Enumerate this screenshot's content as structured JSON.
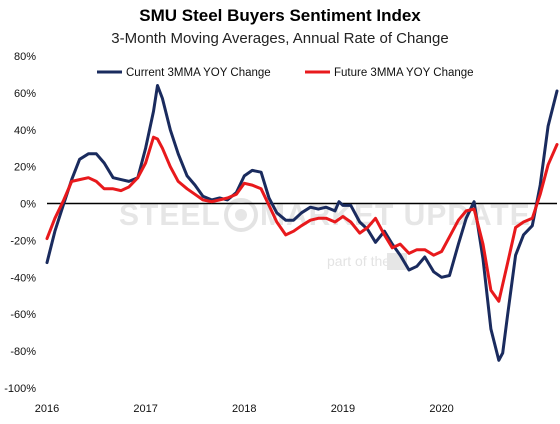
{
  "chart_data": {
    "type": "line",
    "title": "SMU Steel Buyers Sentiment Index",
    "subtitle": "3-Month Moving Averages, Annual Rate of Change",
    "xlabel": "",
    "ylabel": "",
    "ylim": [
      -100,
      80
    ],
    "y_ticks": [
      "80%",
      "60%",
      "40%",
      "20%",
      "0%",
      "-20%",
      "-40%",
      "-60%",
      "-80%",
      "-100%"
    ],
    "x_ticks": [
      "2016",
      "2017",
      "2018",
      "2019",
      "2020"
    ],
    "grid": false,
    "legend_position": "top",
    "zero_line": true,
    "watermark": {
      "brand_left": "STEEL",
      "brand_right": "MARKET UPDATE",
      "tagline": "part of the"
    },
    "series": [
      {
        "name": "Current 3MMA YOY Change",
        "color": "#1a2b5e",
        "points": [
          [
            2016.0,
            -32
          ],
          [
            2016.08,
            -15
          ],
          [
            2016.17,
            0
          ],
          [
            2016.25,
            13
          ],
          [
            2016.33,
            24
          ],
          [
            2016.42,
            27
          ],
          [
            2016.5,
            27
          ],
          [
            2016.58,
            22
          ],
          [
            2016.67,
            14
          ],
          [
            2016.75,
            13
          ],
          [
            2016.83,
            12
          ],
          [
            2016.92,
            14
          ],
          [
            2017.0,
            30
          ],
          [
            2017.08,
            50
          ],
          [
            2017.12,
            64
          ],
          [
            2017.17,
            57
          ],
          [
            2017.25,
            40
          ],
          [
            2017.33,
            27
          ],
          [
            2017.42,
            15
          ],
          [
            2017.5,
            10
          ],
          [
            2017.58,
            4
          ],
          [
            2017.67,
            2
          ],
          [
            2017.75,
            3
          ],
          [
            2017.83,
            2
          ],
          [
            2017.92,
            6
          ],
          [
            2018.0,
            15
          ],
          [
            2018.08,
            18
          ],
          [
            2018.17,
            17
          ],
          [
            2018.25,
            3
          ],
          [
            2018.33,
            -5
          ],
          [
            2018.42,
            -9
          ],
          [
            2018.5,
            -9
          ],
          [
            2018.58,
            -5
          ],
          [
            2018.67,
            -2
          ],
          [
            2018.75,
            -3
          ],
          [
            2018.83,
            -2
          ],
          [
            2018.92,
            -4
          ],
          [
            2018.96,
            1
          ],
          [
            2019.0,
            -1
          ],
          [
            2019.08,
            -1
          ],
          [
            2019.17,
            -10
          ],
          [
            2019.25,
            -14
          ],
          [
            2019.33,
            -21
          ],
          [
            2019.42,
            -15
          ],
          [
            2019.5,
            -22
          ],
          [
            2019.58,
            -28
          ],
          [
            2019.67,
            -36
          ],
          [
            2019.75,
            -34
          ],
          [
            2019.83,
            -29
          ],
          [
            2019.92,
            -37
          ],
          [
            2020.0,
            -40
          ],
          [
            2020.08,
            -39
          ],
          [
            2020.17,
            -22
          ],
          [
            2020.25,
            -8
          ],
          [
            2020.33,
            1
          ],
          [
            2020.42,
            -30
          ],
          [
            2020.5,
            -68
          ],
          [
            2020.58,
            -85
          ],
          [
            2020.62,
            -81
          ],
          [
            2020.67,
            -60
          ],
          [
            2020.75,
            -28
          ],
          [
            2020.83,
            -17
          ],
          [
            2020.92,
            -12
          ],
          [
            2021.0,
            10
          ],
          [
            2021.08,
            42
          ],
          [
            2021.17,
            61
          ]
        ]
      },
      {
        "name": "Future 3MMA YOY Change",
        "color": "#e8191c",
        "points": [
          [
            2016.0,
            -19
          ],
          [
            2016.08,
            -8
          ],
          [
            2016.17,
            2
          ],
          [
            2016.25,
            12
          ],
          [
            2016.33,
            13
          ],
          [
            2016.42,
            14
          ],
          [
            2016.5,
            12
          ],
          [
            2016.58,
            8
          ],
          [
            2016.67,
            8
          ],
          [
            2016.75,
            7
          ],
          [
            2016.83,
            9
          ],
          [
            2016.92,
            14
          ],
          [
            2017.0,
            22
          ],
          [
            2017.08,
            36
          ],
          [
            2017.12,
            35
          ],
          [
            2017.17,
            30
          ],
          [
            2017.25,
            20
          ],
          [
            2017.33,
            12
          ],
          [
            2017.42,
            8
          ],
          [
            2017.5,
            5
          ],
          [
            2017.58,
            2
          ],
          [
            2017.67,
            1
          ],
          [
            2017.75,
            2
          ],
          [
            2017.83,
            3
          ],
          [
            2017.92,
            5
          ],
          [
            2018.0,
            11
          ],
          [
            2018.08,
            10
          ],
          [
            2018.17,
            8
          ],
          [
            2018.25,
            -1
          ],
          [
            2018.33,
            -10
          ],
          [
            2018.42,
            -17
          ],
          [
            2018.5,
            -15
          ],
          [
            2018.58,
            -12
          ],
          [
            2018.67,
            -9
          ],
          [
            2018.75,
            -8
          ],
          [
            2018.83,
            -8
          ],
          [
            2018.92,
            -10
          ],
          [
            2019.0,
            -7
          ],
          [
            2019.08,
            -10
          ],
          [
            2019.17,
            -16
          ],
          [
            2019.25,
            -13
          ],
          [
            2019.33,
            -8
          ],
          [
            2019.42,
            -17
          ],
          [
            2019.5,
            -24
          ],
          [
            2019.58,
            -22
          ],
          [
            2019.67,
            -27
          ],
          [
            2019.75,
            -25
          ],
          [
            2019.83,
            -25
          ],
          [
            2019.92,
            -28
          ],
          [
            2020.0,
            -26
          ],
          [
            2020.08,
            -18
          ],
          [
            2020.17,
            -9
          ],
          [
            2020.25,
            -4
          ],
          [
            2020.33,
            -3
          ],
          [
            2020.42,
            -22
          ],
          [
            2020.5,
            -47
          ],
          [
            2020.58,
            -53
          ],
          [
            2020.67,
            -32
          ],
          [
            2020.75,
            -13
          ],
          [
            2020.83,
            -10
          ],
          [
            2020.92,
            -8
          ],
          [
            2021.0,
            5
          ],
          [
            2021.08,
            21
          ],
          [
            2021.17,
            32
          ]
        ]
      }
    ]
  }
}
